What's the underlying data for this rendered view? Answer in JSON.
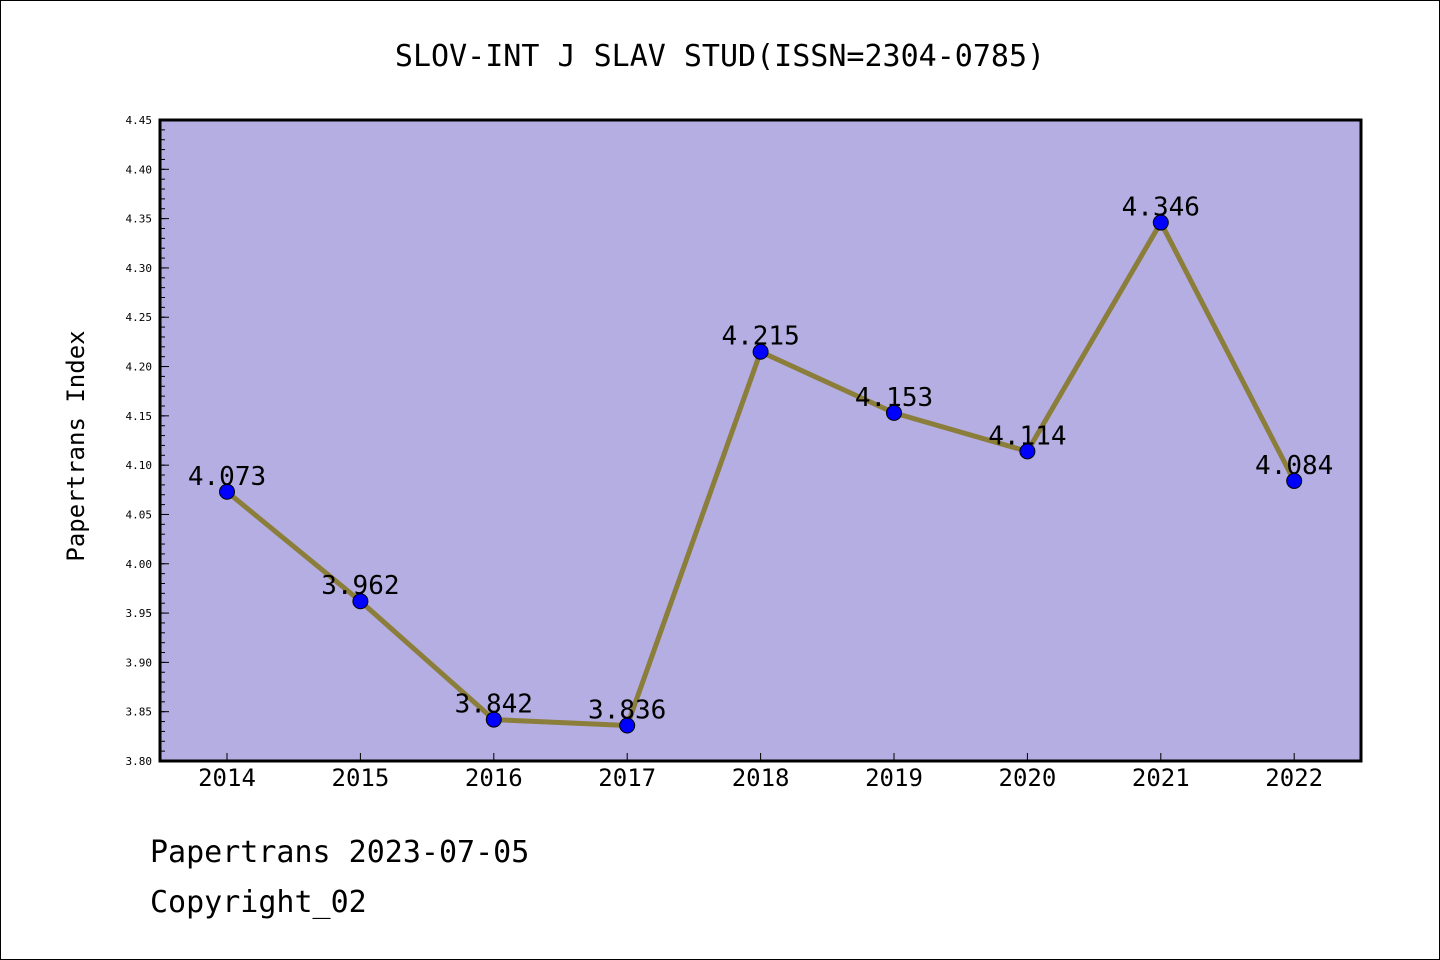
{
  "chart_data": {
    "type": "line",
    "title": "SLOV-INT J SLAV STUD(ISSN=2304-0785)",
    "ylabel": "Papertrans Index",
    "xlabel": "",
    "categories": [
      "2014",
      "2015",
      "2016",
      "2017",
      "2018",
      "2019",
      "2020",
      "2021",
      "2022"
    ],
    "series": [
      {
        "values": [
          4.073,
          3.962,
          3.842,
          3.836,
          4.215,
          4.153,
          4.114,
          4.346,
          4.084
        ]
      }
    ],
    "data_labels": [
      "4.073",
      "3.962",
      "3.842",
      "3.836",
      "4.215",
      "4.153",
      "4.114",
      "4.346",
      "4.084"
    ],
    "ylim": [
      3.8,
      4.45
    ],
    "yticks": [
      "3.80",
      "3.85",
      "3.90",
      "3.95",
      "4.00",
      "4.05",
      "4.10",
      "4.15",
      "4.20",
      "4.25",
      "4.30",
      "4.35",
      "4.40",
      "4.45"
    ],
    "grid": false,
    "colors": {
      "plot_background": "#b4aee2",
      "line": "#8b7d3a",
      "marker": "#0000ff"
    }
  },
  "footer": {
    "line1": "Papertrans 2023-07-05",
    "line2": "Copyright_02"
  }
}
